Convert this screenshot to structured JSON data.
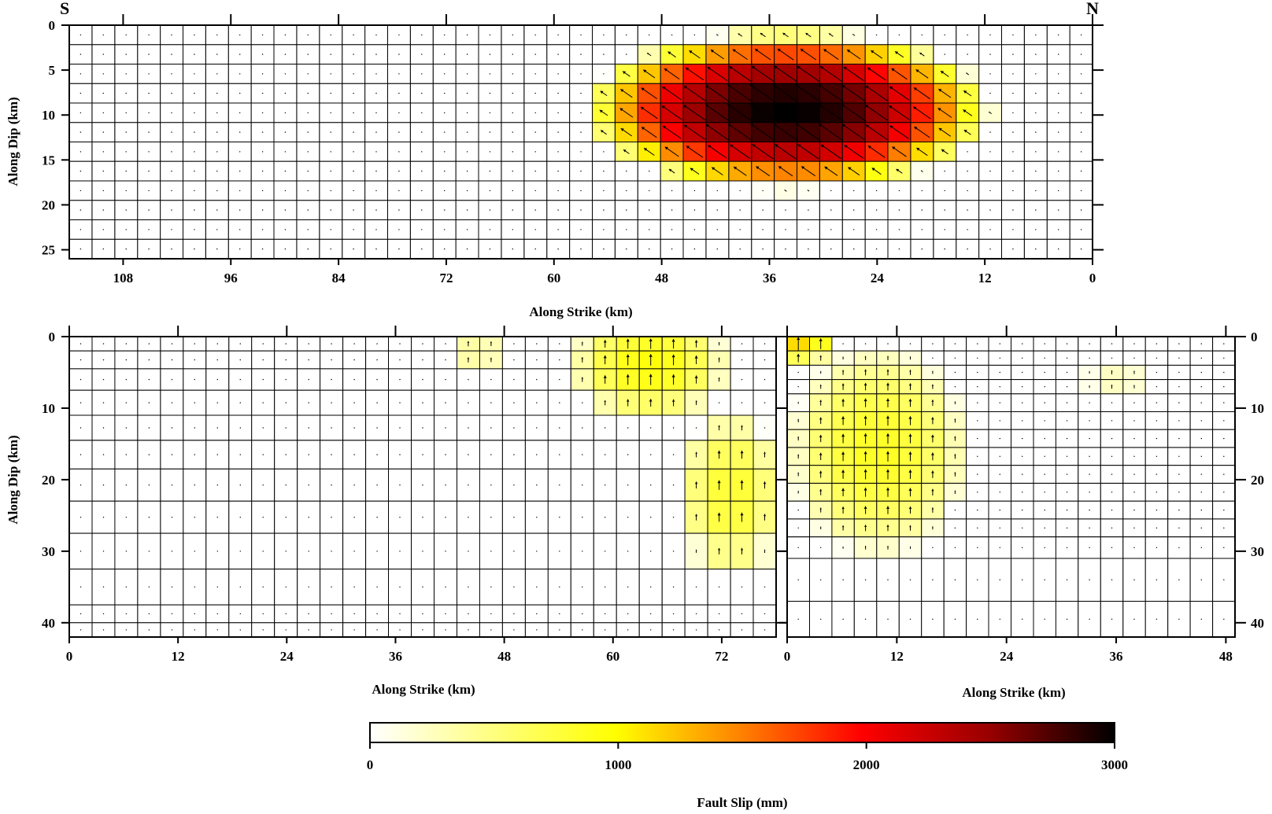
{
  "chart_data": [
    {
      "type": "heatmap",
      "panel": "top",
      "xlabel": "Along Strike (km)",
      "ylabel": "Along Dip (km)",
      "xlim": [
        114,
        0
      ],
      "ylim": [
        0,
        26
      ],
      "x_ticks": [
        "108",
        "96",
        "84",
        "72",
        "60",
        "48",
        "36",
        "24",
        "12",
        "0"
      ],
      "y_ticks": [
        "0",
        "5",
        "10",
        "15",
        "20",
        "25"
      ],
      "corner_labels": {
        "left": "S",
        "right": "N"
      },
      "patch_km": {
        "strike": 2.5,
        "dip": 2.17
      },
      "grid_shape": [
        12,
        45
      ],
      "asperities": [
        {
          "center_strike_km": 34,
          "center_dip_km": 9.5,
          "half_width_strike_km": 23,
          "half_width_dip_km": 9,
          "peak_slip_mm": 3000
        }
      ],
      "rake_note": "arrows point up-dip toward left (oblique)",
      "grid": true
    },
    {
      "type": "heatmap",
      "panel": "bottom-left",
      "xlabel": "Along Strike (km)",
      "ylabel": "Along Dip (km)",
      "xlim": [
        0,
        78
      ],
      "ylim": [
        0,
        42
      ],
      "x_ticks": [
        "0",
        "12",
        "24",
        "36",
        "48",
        "60",
        "72"
      ],
      "y_ticks": [
        "0",
        "10",
        "20",
        "30",
        "40"
      ],
      "patch_km": {
        "strike": 2.5,
        "dip": "variable"
      },
      "grid_shape": [
        12,
        31
      ],
      "asperities": [
        {
          "center_strike_km": 64,
          "center_dip_km": 4,
          "half_width_strike_km": 9,
          "half_width_dip_km": 8,
          "peak_slip_mm": 950
        },
        {
          "center_strike_km": 73,
          "center_dip_km": 22,
          "half_width_strike_km": 6,
          "half_width_dip_km": 12,
          "peak_slip_mm": 800
        },
        {
          "center_strike_km": 45,
          "center_dip_km": 2,
          "half_width_strike_km": 3,
          "half_width_dip_km": 4,
          "peak_slip_mm": 400
        }
      ],
      "rake_note": "arrows point up-dip",
      "grid": true
    },
    {
      "type": "heatmap",
      "panel": "bottom-right",
      "xlabel": "Along Strike (km)",
      "ylabel": "",
      "xlim": [
        0,
        49
      ],
      "ylim": [
        0,
        42
      ],
      "x_ticks": [
        "0",
        "12",
        "24",
        "36",
        "48"
      ],
      "y_ticks": [
        "0",
        "10",
        "20",
        "30",
        "40"
      ],
      "patch_km": {
        "strike": 2.5,
        "dip": "variable"
      },
      "grid_shape": [
        14,
        20
      ],
      "asperities": [
        {
          "center_strike_km": 10,
          "center_dip_km": 16,
          "half_width_strike_km": 10,
          "half_width_dip_km": 15,
          "peak_slip_mm": 850
        },
        {
          "center_strike_km": 2,
          "center_dip_km": 1,
          "half_width_strike_km": 3,
          "half_width_dip_km": 3,
          "peak_slip_mm": 1200
        },
        {
          "center_strike_km": 36,
          "center_dip_km": 6,
          "half_width_strike_km": 4,
          "half_width_dip_km": 2,
          "peak_slip_mm": 300
        }
      ],
      "rake_note": "arrows point up-dip",
      "grid": true
    }
  ],
  "colorbar": {
    "label": "Fault Slip (mm)",
    "min": 0,
    "max": 3000,
    "ticks": [
      "0",
      "1000",
      "2000",
      "3000"
    ],
    "colors": [
      "#ffffff",
      "#ffff00",
      "#ff8000",
      "#ff0000",
      "#990000",
      "#000000"
    ]
  }
}
